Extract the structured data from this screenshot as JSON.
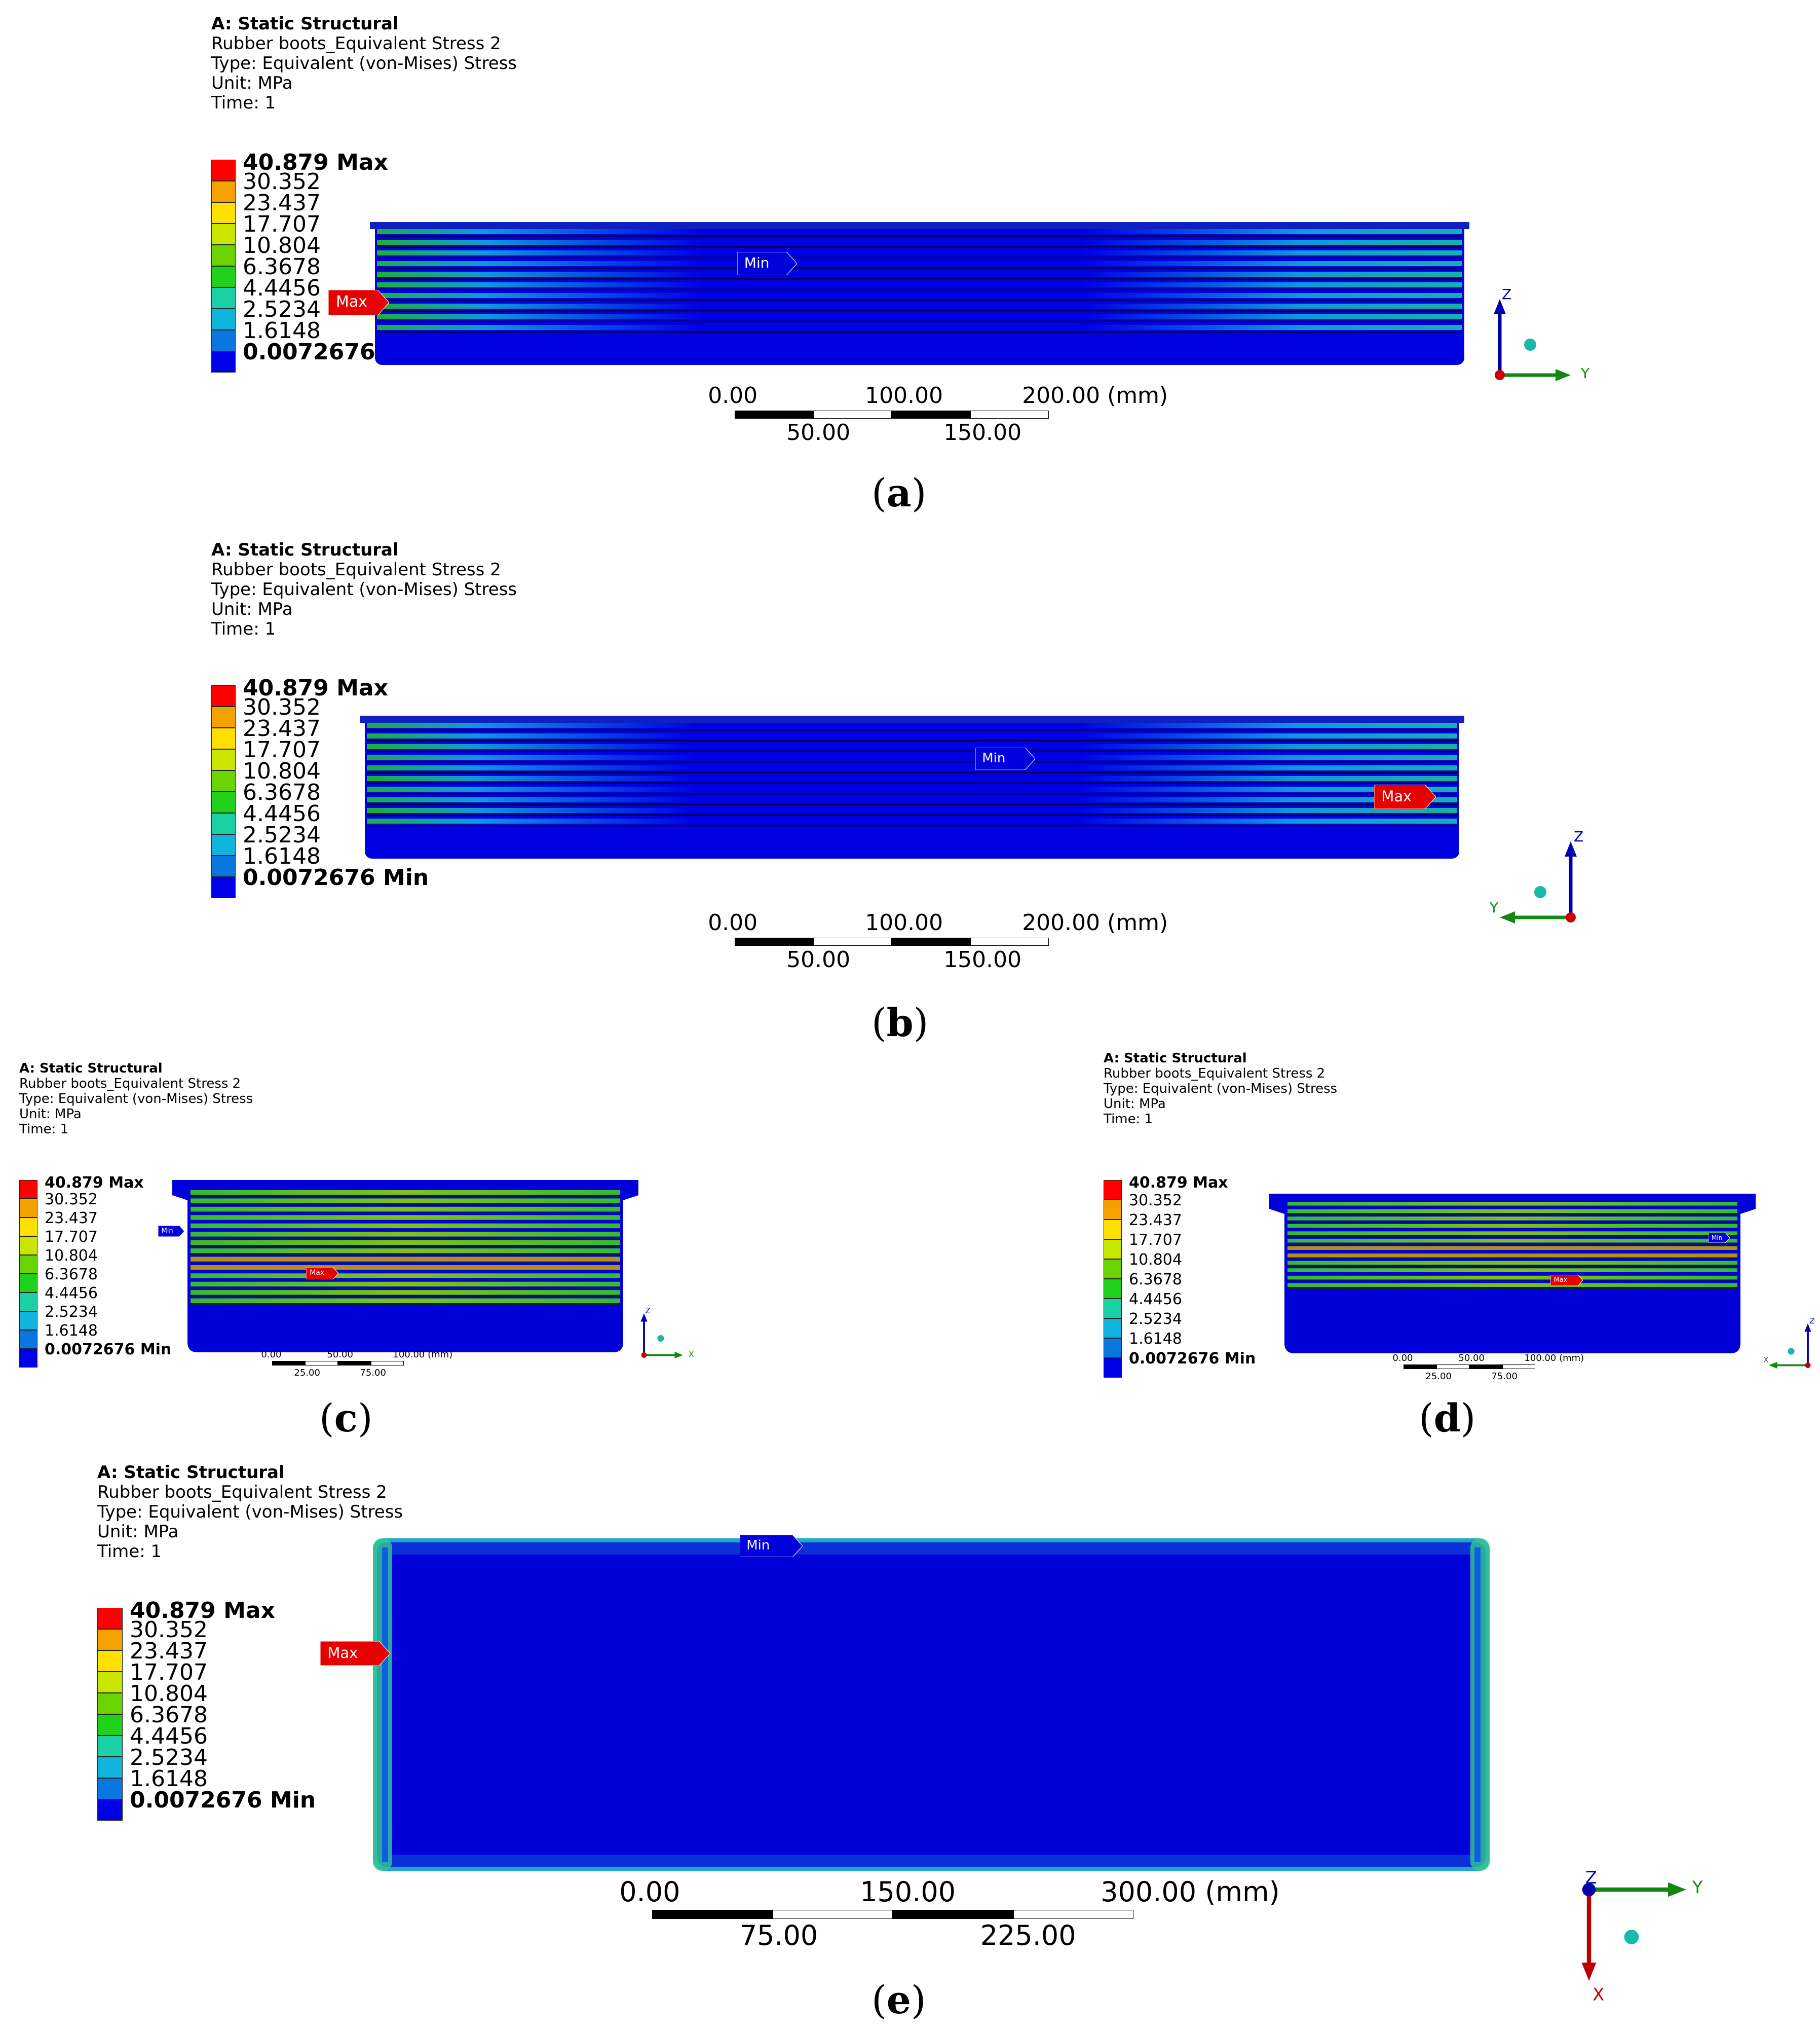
{
  "legend": {
    "levels": [
      "40.879 Max",
      "30.352",
      "23.437",
      "17.707",
      "10.804",
      "6.3678",
      "4.4456",
      "2.5234",
      "1.6148",
      "0.0072676 Min"
    ],
    "colors": [
      "#ff0000",
      "#f5a100",
      "#ffe000",
      "#c8e600",
      "#6ad400",
      "#1fd11a",
      "#1bd0a4",
      "#10b4dc",
      "#0a77e0",
      "#0000e8"
    ]
  },
  "panels": [
    {
      "id": "a",
      "header": {
        "title": "A: Static Structural",
        "line2": "Rubber boots_Equivalent Stress 2",
        "line3": "Type: Equivalent (von-Mises) Stress",
        "line4": "Unit: MPa",
        "line5": "Time: 1"
      },
      "scale": {
        "ticks_top": [
          "0.00",
          "100.00",
          "200.00 (mm)"
        ],
        "ticks_bottom": [
          "50.00",
          "150.00"
        ]
      },
      "max_label": "Max",
      "min_label": "Min",
      "axes": {
        "vertical": "Z",
        "horizontal": "Y"
      },
      "caption": "a"
    },
    {
      "id": "b",
      "header": {
        "title": "A: Static Structural",
        "line2": "Rubber boots_Equivalent Stress 2",
        "line3": "Type: Equivalent (von-Mises) Stress",
        "line4": "Unit: MPa",
        "line5": "Time: 1"
      },
      "scale": {
        "ticks_top": [
          "0.00",
          "100.00",
          "200.00 (mm)"
        ],
        "ticks_bottom": [
          "50.00",
          "150.00"
        ]
      },
      "max_label": "Max",
      "min_label": "Min",
      "axes": {
        "vertical": "Z",
        "horizontal": "Y"
      },
      "caption": "b"
    },
    {
      "id": "c",
      "header": {
        "title": "A: Static Structural",
        "line2": "Rubber boots_Equivalent Stress 2",
        "line3": "Type: Equivalent (von-Mises) Stress",
        "line4": "Unit: MPa",
        "line5": "Time: 1"
      },
      "scale": {
        "ticks_top": [
          "0.00",
          "50.00",
          "100.00 (mm)"
        ],
        "ticks_bottom": [
          "25.00",
          "75.00"
        ]
      },
      "max_label": "Max",
      "min_label": "Min",
      "axes": {
        "vertical": "Z",
        "horizontal": "X"
      },
      "caption": "c"
    },
    {
      "id": "d",
      "header": {
        "title": "A: Static Structural",
        "line2": "Rubber boots_Equivalent Stress 2",
        "line3": "Type: Equivalent (von-Mises) Stress",
        "line4": "Unit: MPa",
        "line5": "Time: 1"
      },
      "scale": {
        "ticks_top": [
          "0.00",
          "50.00",
          "100.00 (mm)"
        ],
        "ticks_bottom": [
          "25.00",
          "75.00"
        ]
      },
      "max_label": "Max",
      "min_label": "Min",
      "axes": {
        "vertical": "Z",
        "horizontal": "X"
      },
      "caption": "d"
    },
    {
      "id": "e",
      "header": {
        "title": "A: Static Structural",
        "line2": "Rubber boots_Equivalent Stress 2",
        "line3": "Type: Equivalent (von-Mises) Stress",
        "line4": "Unit: MPa",
        "line5": "Time: 1"
      },
      "scale": {
        "ticks_top": [
          "0.00",
          "150.00",
          "300.00 (mm)"
        ],
        "ticks_bottom": [
          "75.00",
          "225.00"
        ]
      },
      "max_label": "Max",
      "min_label": "Min",
      "axes": {
        "vertical": "X",
        "horizontal": "Y",
        "depth": "Z"
      },
      "caption": "e"
    }
  ]
}
